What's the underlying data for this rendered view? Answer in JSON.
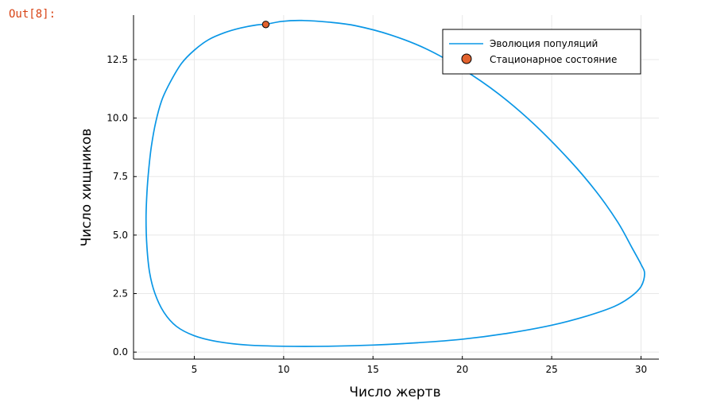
{
  "cell": {
    "prompt": "Out[8]:"
  },
  "chart_data": {
    "type": "line",
    "xlabel": "Число жертв",
    "ylabel": "Число хищников",
    "xlim": [
      1.6,
      31.0
    ],
    "ylim": [
      -0.3,
      14.4
    ],
    "xticks": [
      5,
      10,
      15,
      20,
      25,
      30
    ],
    "xtick_labels": [
      "5",
      "10",
      "15",
      "20",
      "25",
      "30"
    ],
    "yticks": [
      0,
      2.5,
      5,
      7.5,
      10,
      12.5
    ],
    "ytick_labels": [
      "0.0",
      "2.5",
      "5.0",
      "7.5",
      "10.0",
      "12.5"
    ],
    "grid": true,
    "legend_position": "top-right",
    "colors": {
      "series": "#0a97e6",
      "point": "#e2622e",
      "grid": "#e8e8e8"
    },
    "series": [
      {
        "name": "Эволюция популяций",
        "kind": "line",
        "x": [
          9.0,
          9.9,
          11.0,
          12.5,
          14.0,
          16.0,
          18.0,
          20.0,
          22.0,
          24.0,
          26.0,
          27.5,
          28.7,
          29.5,
          30.0,
          30.2,
          30.0,
          29.4,
          28.5,
          27.0,
          25.0,
          22.5,
          20.0,
          17.5,
          15.0,
          12.5,
          10.0,
          8.0,
          6.3,
          5.0,
          4.0,
          3.3,
          2.8,
          2.5,
          2.35,
          2.3,
          2.35,
          2.45,
          2.6,
          2.85,
          3.2,
          3.7,
          4.3,
          5.0,
          5.8,
          6.7,
          7.6,
          8.5,
          9.0
        ],
        "y": [
          14.0,
          14.13,
          14.17,
          14.1,
          13.95,
          13.55,
          12.95,
          12.1,
          11.05,
          9.75,
          8.2,
          6.85,
          5.55,
          4.45,
          3.75,
          3.35,
          2.8,
          2.35,
          1.95,
          1.55,
          1.15,
          0.8,
          0.55,
          0.4,
          0.3,
          0.25,
          0.25,
          0.3,
          0.45,
          0.7,
          1.1,
          1.7,
          2.5,
          3.4,
          4.5,
          5.7,
          6.8,
          7.8,
          8.8,
          9.85,
          10.8,
          11.6,
          12.35,
          12.9,
          13.35,
          13.65,
          13.85,
          13.98,
          14.0
        ]
      },
      {
        "name": "Стационарное состояние",
        "kind": "point",
        "x": [
          9.0
        ],
        "y": [
          14.0
        ]
      }
    ]
  }
}
